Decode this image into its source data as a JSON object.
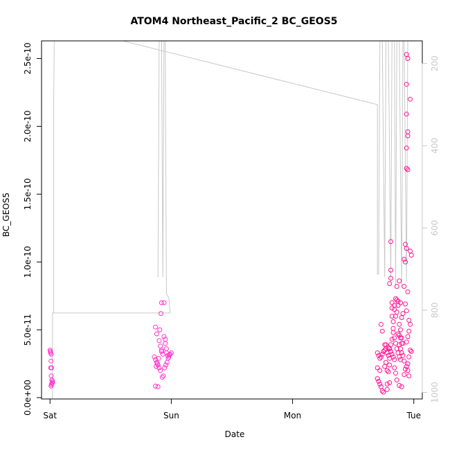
{
  "chart_data": {
    "type": "scatter",
    "title": "ATOM4 Northeast_Pacific_2 BC_GEOS5",
    "xlabel": "Date",
    "ylabel": "BC_GEOS5",
    "x_ticks": [
      {
        "day": 0,
        "label": "Sat"
      },
      {
        "day": 1,
        "label": "Sun"
      },
      {
        "day": 2,
        "label": "Mon"
      },
      {
        "day": 3,
        "label": "Tue"
      }
    ],
    "xlim": [
      -0.07,
      3.07
    ],
    "ylim": [
      -1e-12,
      2.63e-10
    ],
    "y_ticks": [
      {
        "value": 0.0,
        "label": "0.0e+00"
      },
      {
        "value": 5e-11,
        "label": "5.0e-11"
      },
      {
        "value": 1e-10,
        "label": "1.0e-10"
      },
      {
        "value": 1.5e-10,
        "label": "1.5e-10"
      },
      {
        "value": 2e-10,
        "label": "2.0e-10"
      },
      {
        "value": 2.5e-10,
        "label": "2.5e-10"
      }
    ],
    "y2_ticks": [
      {
        "value": 200,
        "label": "200"
      },
      {
        "value": 400,
        "label": "400"
      },
      {
        "value": 600,
        "label": "600"
      },
      {
        "value": 800,
        "label": "800"
      },
      {
        "value": 1000,
        "label": "1000"
      }
    ],
    "y2lim": [
      1016,
      145
    ],
    "colors": {
      "points": "#ff1493",
      "points_light": "#ff33cc",
      "pressure_line": "#c8c8c8",
      "axes": "#000000",
      "right_axis": "#c8c8c8"
    },
    "series": [
      {
        "values_note": "",
        "points": [
          [
            0.0,
            3.5e-11
          ],
          [
            0.005,
            3.3e-11
          ],
          [
            0.01,
            3.2e-11
          ],
          [
            0.008,
            2.7e-11
          ],
          [
            0.006,
            2.2e-11
          ],
          [
            0.01,
            1.6e-11
          ],
          [
            0.015,
            1.3e-11
          ],
          [
            0.02,
            1.2e-11
          ],
          [
            0.015,
            1.05e-11
          ],
          [
            0.012,
            9.5e-12
          ],
          [
            0.008,
            8.5e-12
          ],
          [
            0.02,
            1.1e-11
          ],
          [
            0.003,
            3.4e-11
          ],
          [
            0.012,
            2.2e-11
          ],
          [
            0.87,
            5.2e-11
          ],
          [
            0.88,
            4.7e-11
          ],
          [
            0.9,
            4.2e-11
          ],
          [
            0.91,
            3.8e-11
          ],
          [
            0.92,
            3.5e-11
          ],
          [
            0.93,
            3.2e-11
          ],
          [
            0.86,
            3e-11
          ],
          [
            0.87,
            2.8e-11
          ],
          [
            0.88,
            2.6e-11
          ],
          [
            0.89,
            2.4e-11
          ],
          [
            0.9,
            2.2e-11
          ],
          [
            0.91,
            2e-11
          ],
          [
            0.92,
            3.4e-11
          ],
          [
            0.94,
            4.5e-11
          ],
          [
            0.95,
            4e-11
          ],
          [
            0.96,
            3.6e-11
          ],
          [
            0.97,
            3.1e-11
          ],
          [
            0.98,
            3e-11
          ],
          [
            0.99,
            3.2e-11
          ],
          [
            1.0,
            3.3e-11
          ],
          [
            0.985,
            3.15e-11
          ],
          [
            0.975,
            2.9e-11
          ],
          [
            0.965,
            2.6e-11
          ],
          [
            0.955,
            2.4e-11
          ],
          [
            0.945,
            2.2e-11
          ],
          [
            0.935,
            1.6e-11
          ],
          [
            0.925,
            1.5e-11
          ],
          [
            0.87,
            8.5e-12
          ],
          [
            0.89,
            8e-12
          ],
          [
            0.92,
            7e-11
          ],
          [
            0.94,
            7e-11
          ],
          [
            0.915,
            6.2e-11
          ],
          [
            0.905,
            5e-11
          ],
          [
            0.895,
            2.9e-11
          ],
          [
            0.885,
            2.5e-11
          ],
          [
            0.875,
            2.3e-11
          ],
          [
            0.95,
            4.3e-11
          ],
          [
            0.96,
            3.3e-11
          ],
          [
            2.7,
            3.3e-11
          ],
          [
            2.71,
            3.1e-11
          ],
          [
            2.72,
            2.9e-11
          ],
          [
            2.7,
            2.2e-11
          ],
          [
            2.72,
            2e-11
          ],
          [
            2.7,
            1.4e-11
          ],
          [
            2.71,
            1.2e-11
          ],
          [
            2.72,
            1e-11
          ],
          [
            2.73,
            8e-12
          ],
          [
            2.74,
            5e-12
          ],
          [
            2.75,
            4e-12
          ],
          [
            2.73,
            5.4e-11
          ],
          [
            2.74,
            4.9e-11
          ],
          [
            2.76,
            3.9e-11
          ],
          [
            2.77,
            3.6e-11
          ],
          [
            2.78,
            3.3e-11
          ],
          [
            2.79,
            3.1e-11
          ],
          [
            2.8,
            2.9e-11
          ],
          [
            2.78,
            2e-11
          ],
          [
            2.79,
            1.9e-11
          ],
          [
            2.78,
            1e-11
          ],
          [
            2.8,
            1.1e-11
          ],
          [
            2.78,
            6e-12
          ],
          [
            2.81,
            1.15e-10
          ],
          [
            2.8,
            8.4e-11
          ],
          [
            2.81,
            9.4e-11
          ],
          [
            2.81,
            8.8e-11
          ],
          [
            2.82,
            7e-11
          ],
          [
            2.82,
            6.6e-11
          ],
          [
            2.82,
            6e-11
          ],
          [
            2.83,
            5.6e-11
          ],
          [
            2.83,
            4.8e-11
          ],
          [
            2.84,
            4.4e-11
          ],
          [
            2.85,
            4e-11
          ],
          [
            2.86,
            3.6e-11
          ],
          [
            2.87,
            3.3e-11
          ],
          [
            2.88,
            3e-11
          ],
          [
            2.89,
            2.8e-11
          ],
          [
            2.85,
            7.3e-11
          ],
          [
            2.86,
            7.2e-11
          ],
          [
            2.87,
            6.8e-11
          ],
          [
            2.84,
            6.5e-11
          ],
          [
            2.85,
            6e-11
          ],
          [
            2.88,
            5.4e-11
          ],
          [
            2.89,
            5e-11
          ],
          [
            2.87,
            4.7e-11
          ],
          [
            2.9,
            4.4e-11
          ],
          [
            2.91,
            4e-11
          ],
          [
            2.86,
            8.2e-11
          ],
          [
            2.88,
            8.6e-11
          ],
          [
            2.84,
            2.2e-11
          ],
          [
            2.85,
            1.8e-11
          ],
          [
            2.86,
            1.3e-11
          ],
          [
            2.88,
            9e-12
          ],
          [
            2.9,
            8e-12
          ],
          [
            2.92,
            1.7e-11
          ],
          [
            2.93,
            2.1e-11
          ],
          [
            2.94,
            2.3e-11
          ],
          [
            2.95,
            2.5e-11
          ],
          [
            2.93,
            6.9e-11
          ],
          [
            2.94,
            6.4e-11
          ],
          [
            2.92,
            1.02e-10
          ],
          [
            2.93,
            1e-10
          ],
          [
            2.94,
            1.1e-10
          ],
          [
            2.93,
            1.13e-10
          ],
          [
            2.92,
            8.2e-11
          ],
          [
            2.95,
            7.8e-11
          ],
          [
            2.96,
            5.7e-11
          ],
          [
            2.97,
            5.4e-11
          ],
          [
            2.96,
            4.9e-11
          ],
          [
            2.95,
            4.5e-11
          ],
          [
            2.94,
            4.1e-11
          ],
          [
            2.97,
            3.5e-11
          ],
          [
            2.98,
            3.4e-11
          ],
          [
            2.96,
            3e-11
          ],
          [
            2.95,
            2e-11
          ],
          [
            2.96,
            1.6e-11
          ],
          [
            2.94,
            1.84e-10
          ],
          [
            2.95,
            1.93e-10
          ],
          [
            2.95,
            1.96e-10
          ],
          [
            2.94,
            2.09e-10
          ],
          [
            2.94,
            2.31e-10
          ],
          [
            2.95,
            2.5e-10
          ],
          [
            2.94,
            2.53e-10
          ],
          [
            2.97,
            2.2e-10
          ],
          [
            2.94,
            1.69e-10
          ],
          [
            2.95,
            1.68e-10
          ],
          [
            2.98,
            1.05e-10
          ],
          [
            2.97,
            1.08e-10
          ],
          [
            2.9,
            5.9e-11
          ],
          [
            2.91,
            6.2e-11
          ],
          [
            2.89,
            7e-11
          ],
          [
            2.87,
            7.1e-11
          ],
          [
            2.88,
            3.9e-11
          ],
          [
            2.89,
            3.6e-11
          ],
          [
            2.9,
            3.3e-11
          ],
          [
            2.91,
            3.1e-11
          ],
          [
            2.92,
            2.7e-11
          ],
          [
            2.8,
            3.6e-11
          ],
          [
            2.81,
            3.4e-11
          ],
          [
            2.82,
            3.2e-11
          ],
          [
            2.83,
            3e-11
          ],
          [
            2.84,
            2.8e-11
          ],
          [
            2.79,
            3.7e-11
          ],
          [
            2.77,
            3.9e-11
          ],
          [
            2.76,
            3.5e-11
          ],
          [
            2.75,
            3.4e-11
          ],
          [
            2.74,
            3.2e-11
          ],
          [
            2.73,
            3e-11
          ],
          [
            2.88,
            4.6e-11
          ],
          [
            2.89,
            4.4e-11
          ],
          [
            2.9,
            4e-11
          ],
          [
            2.86,
            6.3e-11
          ],
          [
            2.84,
            6.8e-11
          ],
          [
            2.83,
            5.1e-11
          ],
          [
            2.82,
            4.3e-11
          ],
          [
            2.81,
            3.9e-11
          ],
          [
            2.8,
            3.6e-11
          ],
          [
            2.8,
            2.4e-11
          ],
          [
            2.77,
            2.6e-11
          ],
          [
            2.76,
            2.3e-11
          ]
        ]
      }
    ],
    "pressure_series": {
      "axis": "right",
      "points": [
        [
          0.02,
          1016
        ],
        [
          0.02,
          807
        ],
        [
          0.03,
          807
        ],
        [
          0.03,
          300
        ],
        [
          0.035,
          145
        ],
        [
          0.6,
          145
        ],
        [
          2.7,
          300
        ],
        [
          2.7,
          712
        ],
        [
          2.71,
          712
        ],
        [
          2.72,
          145
        ],
        [
          2.74,
          145
        ],
        [
          2.76,
          720
        ],
        [
          2.77,
          145
        ],
        [
          2.79,
          145
        ],
        [
          2.81,
          730
        ],
        [
          2.82,
          145
        ],
        [
          2.84,
          145
        ],
        [
          2.85,
          740
        ],
        [
          2.86,
          145
        ],
        [
          2.88,
          145
        ],
        [
          2.9,
          745
        ],
        [
          2.91,
          145
        ],
        [
          2.92,
          145
        ],
        [
          2.94,
          730
        ],
        [
          2.95,
          145
        ],
        [
          2.97,
          145
        ]
      ],
      "sun_points": [
        [
          0.03,
          807
        ],
        [
          0.99,
          807
        ],
        [
          0.98,
          770
        ],
        [
          0.96,
          760
        ],
        [
          0.95,
          145
        ],
        [
          0.94,
          145
        ],
        [
          0.93,
          720
        ],
        [
          0.92,
          145
        ],
        [
          0.9,
          145
        ],
        [
          0.89,
          720
        ]
      ]
    }
  }
}
